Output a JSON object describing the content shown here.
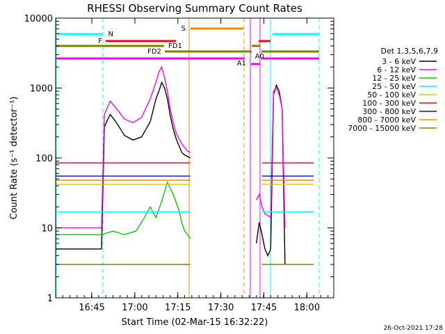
{
  "chart_data": {
    "type": "line",
    "title": "RHESSI Observing Summary Count Rates",
    "xlabel": "Start Time (02-Mar-15 16:32:22)",
    "ylabel": "Count Rate (s⁻¹ detector⁻¹)",
    "yscale": "log",
    "ylim": [
      1,
      10000
    ],
    "xlim_minutes_after_start": [
      0,
      97
    ],
    "x_ticks": [
      {
        "label": "16:45",
        "minutes": 12.63
      },
      {
        "label": "17:00",
        "minutes": 27.63
      },
      {
        "label": "17:15",
        "minutes": 42.63
      },
      {
        "label": "17:30",
        "minutes": 57.63
      },
      {
        "label": "17:45",
        "minutes": 72.63
      },
      {
        "label": "18:00",
        "minutes": 87.63
      }
    ],
    "y_ticks": [
      {
        "label": "1",
        "value": 1
      },
      {
        "label": "10",
        "value": 10
      },
      {
        "label": "100",
        "value": 100
      },
      {
        "label": "1000",
        "value": 1000
      },
      {
        "label": "10000",
        "value": 10000
      }
    ],
    "legend_title": "Det 1,3,5,6,7,9",
    "legend_placement": "right",
    "timestamp": "26-Oct-2021 17:28",
    "series": [
      {
        "name": "3 - 6 keV",
        "color": "#000000",
        "x": [
          0,
          16,
          17,
          19,
          21,
          24,
          27,
          30,
          33,
          35,
          36,
          37,
          38,
          39,
          40,
          41,
          42,
          43,
          44,
          45,
          46,
          47
        ],
        "y": [
          5,
          5,
          280,
          420,
          330,
          210,
          180,
          200,
          330,
          700,
          900,
          1200,
          1000,
          700,
          400,
          260,
          190,
          150,
          120,
          110,
          105,
          100
        ]
      },
      {
        "name": "6 - 12 keV",
        "color": "#ff00ff",
        "x": [
          0,
          16,
          17,
          19,
          21,
          24,
          27,
          30,
          33,
          35,
          36,
          37,
          38,
          39,
          40,
          41,
          42,
          43,
          44,
          45,
          46,
          47
        ],
        "y": [
          10,
          10,
          420,
          650,
          520,
          360,
          320,
          380,
          700,
          1200,
          1700,
          2000,
          1400,
          900,
          500,
          320,
          230,
          190,
          160,
          140,
          125,
          120
        ]
      },
      {
        "name": "12 - 25 keV",
        "color": "#00cc00",
        "x": [
          0,
          16,
          20,
          24,
          28,
          31,
          33,
          35,
          37,
          39,
          41,
          43,
          44,
          45,
          46,
          47
        ],
        "y": [
          8,
          8,
          9,
          8,
          9,
          14,
          20,
          14,
          24,
          45,
          30,
          18,
          12,
          9,
          8,
          7
        ]
      },
      {
        "name": "25 - 50 keV",
        "color": "#00ffff",
        "x": [
          0,
          47
        ],
        "y": [
          17,
          17
        ]
      },
      {
        "name": "50 - 100 keV",
        "color": "#cccc00",
        "x": [
          0,
          47
        ],
        "y": [
          42,
          42
        ]
      },
      {
        "name": "100 - 300 keV",
        "color": "#ff0000",
        "x": [
          0,
          47
        ],
        "y": [
          85,
          85
        ]
      },
      {
        "name": "300 - 800 keV",
        "color": "#0000ff",
        "x": [
          0,
          47
        ],
        "y": [
          55,
          55
        ]
      },
      {
        "name": "800 - 7000 keV",
        "color": "#ff8800",
        "x": [
          0,
          47
        ],
        "y": [
          48,
          48
        ]
      },
      {
        "name": "7000 - 15000 keV",
        "color": "#808000",
        "x": [
          0,
          47
        ],
        "y": [
          3,
          3
        ]
      }
    ],
    "series_after_gap": [
      {
        "name": "3 - 6 keV",
        "x": [
          70,
          71,
          72,
          73,
          74,
          75,
          76,
          77,
          78,
          79,
          80
        ],
        "y": [
          6,
          12,
          8,
          5,
          4,
          5,
          800,
          1100,
          900,
          500,
          3
        ]
      },
      {
        "name": "6 - 12 keV",
        "x": [
          70,
          71,
          72,
          73,
          74,
          75,
          76,
          77,
          78,
          79,
          80
        ],
        "y": [
          25,
          30,
          20,
          16,
          15,
          14,
          900,
          1000,
          800,
          500,
          10
        ]
      }
    ],
    "annotations": [
      {
        "label": "N",
        "color": "#00ffff"
      },
      {
        "label": "F",
        "color": "#ff0000"
      },
      {
        "label": "FD1",
        "color": "#808000"
      },
      {
        "label": "FD2",
        "color": "#808000"
      },
      {
        "label": "S",
        "color": "#ff8800"
      },
      {
        "label": "A0",
        "color": "#ff00ff"
      },
      {
        "label": "A1",
        "color": "#ff00ff"
      }
    ],
    "grid": false
  }
}
